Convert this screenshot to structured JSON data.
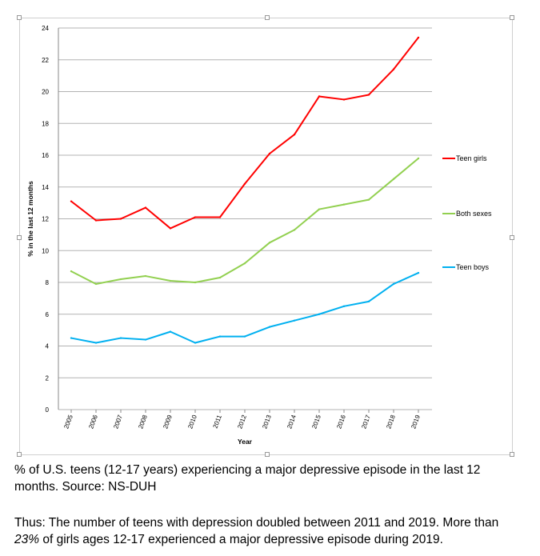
{
  "chart_data": {
    "type": "line",
    "xlabel": "Year",
    "ylabel": "% in the last 12 months",
    "ylim": [
      0,
      24
    ],
    "y_ticks": [
      0,
      2,
      4,
      6,
      8,
      10,
      12,
      14,
      16,
      18,
      20,
      22,
      24
    ],
    "grid": true,
    "legend_position": "right",
    "x": [
      "2005",
      "2006",
      "2007",
      "2008",
      "2009",
      "2010",
      "2011",
      "2012",
      "2013",
      "2014",
      "2015",
      "2016",
      "2017",
      "2018",
      "2019"
    ],
    "series": [
      {
        "name": "Teen girls",
        "color": "#ff0000",
        "values": [
          13.1,
          11.9,
          12.0,
          12.7,
          11.4,
          12.1,
          12.1,
          14.2,
          16.1,
          17.3,
          19.7,
          19.5,
          19.8,
          21.4,
          23.4
        ]
      },
      {
        "name": "Both sexes",
        "color": "#92d050",
        "values": [
          8.7,
          7.9,
          8.2,
          8.4,
          8.1,
          8.0,
          8.3,
          9.2,
          10.5,
          11.3,
          12.6,
          12.9,
          13.2,
          14.5,
          15.8
        ]
      },
      {
        "name": "Teen boys",
        "color": "#00b0f0",
        "values": [
          4.5,
          4.2,
          4.5,
          4.4,
          4.9,
          4.2,
          4.6,
          4.6,
          5.2,
          5.6,
          6.0,
          6.5,
          6.8,
          7.9,
          8.6
        ]
      }
    ]
  },
  "captions": {
    "line1": "% of U.S. teens (12-17 years) experiencing a major depressive episode in the last 12 months. Source: NS-DUH",
    "line2_prefix": "Thus: The number of teens with depression doubled between 2011 and 2019. More than ",
    "line2_emphasis": "23%",
    "line2_suffix": " of girls ages 12-17 experienced a major depressive episode during 2019."
  }
}
